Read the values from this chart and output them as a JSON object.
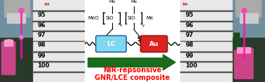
{
  "arrow_color": "#1a6b1a",
  "lc_box_color": "#7DD8F0",
  "au_box_color": "#DD2222",
  "lc_text": "LC",
  "au_text": "Au",
  "main_text_line1": "NIR-repsonsive",
  "main_text_line2": "GNR/LCE composite",
  "text_color": "#FF0000",
  "ruler_numbers": [
    "95",
    "96",
    "97",
    "98",
    "99",
    "100"
  ],
  "fig_width": 3.78,
  "fig_height": 1.18,
  "dpi": 100
}
